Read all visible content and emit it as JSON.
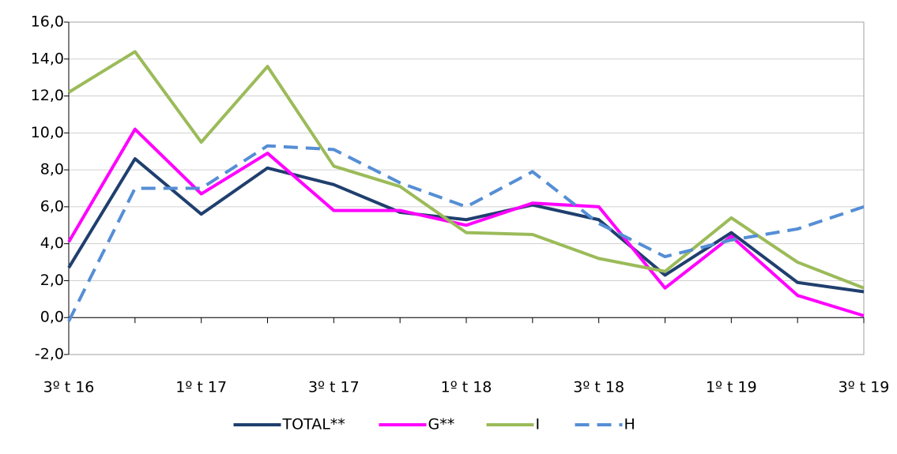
{
  "chart_data": {
    "type": "line",
    "categories": [
      "3º t 16",
      null,
      "1º t 17",
      null,
      "3º t 17",
      null,
      "1º t 18",
      null,
      "3º t 18",
      null,
      "1º t 19",
      null,
      "3º t 19"
    ],
    "series": [
      {
        "name": "TOTAL**",
        "color": "#1f3f6e",
        "dashed": false,
        "values": [
          2.7,
          8.6,
          5.6,
          8.1,
          7.2,
          5.7,
          5.3,
          6.1,
          5.3,
          2.3,
          4.6,
          1.9,
          1.4
        ]
      },
      {
        "name": "G**",
        "color": "#ff00ff",
        "dashed": false,
        "values": [
          4.1,
          10.2,
          6.7,
          8.9,
          5.8,
          5.8,
          5.0,
          6.2,
          6.0,
          1.6,
          4.4,
          1.2,
          0.1
        ]
      },
      {
        "name": "I",
        "color": "#9bbb59",
        "dashed": false,
        "values": [
          12.2,
          14.4,
          9.5,
          13.6,
          8.2,
          7.1,
          4.6,
          4.5,
          3.2,
          2.5,
          5.4,
          3.0,
          1.6
        ]
      },
      {
        "name": "H",
        "color": "#558ed5",
        "dashed": true,
        "values": [
          -0.2,
          7.0,
          7.0,
          9.3,
          9.1,
          7.3,
          6.0,
          7.9,
          5.1,
          3.3,
          4.2,
          4.8,
          6.0
        ]
      }
    ],
    "ylim": [
      -2,
      16
    ],
    "yticks": [
      {
        "value": -2,
        "label": "-2,0"
      },
      {
        "value": 0,
        "label": "0,0"
      },
      {
        "value": 2,
        "label": "2,0"
      },
      {
        "value": 4,
        "label": "4,0"
      },
      {
        "value": 6,
        "label": "6,0"
      },
      {
        "value": 8,
        "label": "8,0"
      },
      {
        "value": 10,
        "label": "10,0"
      },
      {
        "value": 12,
        "label": "12,0"
      },
      {
        "value": 14,
        "label": "14,0"
      },
      {
        "value": 16,
        "label": "16,0"
      }
    ],
    "grid": true,
    "legend": "bottom"
  }
}
